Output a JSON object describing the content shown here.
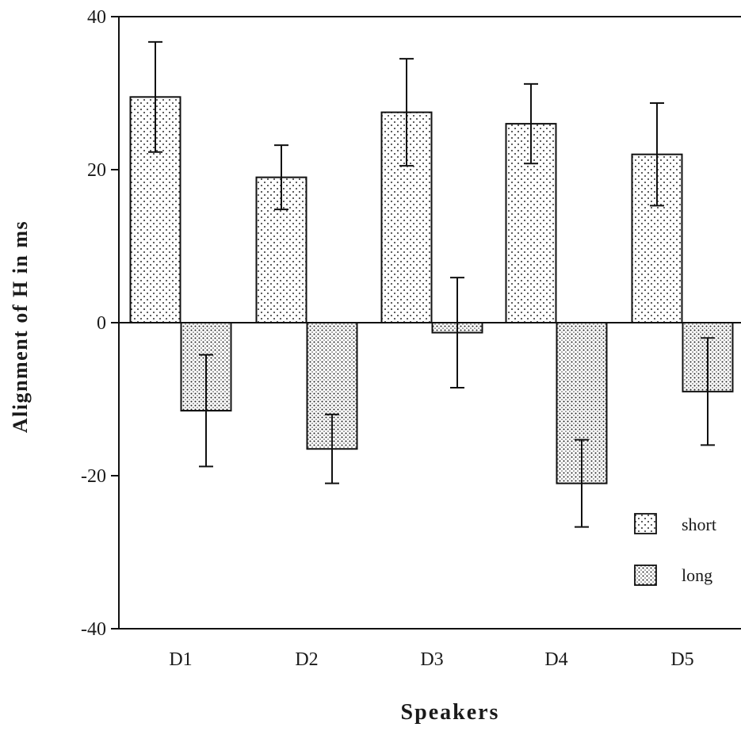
{
  "chart_data": {
    "type": "bar",
    "title": "",
    "xlabel": "Speakers",
    "ylabel": "Alignment of H in ms",
    "categories": [
      "D1",
      "D2",
      "D3",
      "D4",
      "D5"
    ],
    "ylim": [
      -40,
      40
    ],
    "yticks": [
      40,
      20,
      0,
      -20,
      -40
    ],
    "ytick_labels": [
      "40",
      "20",
      "0",
      "-20",
      "-40"
    ],
    "series": [
      {
        "name": "short",
        "pattern": "sparse-dots",
        "values": [
          29.5,
          19,
          27.5,
          26,
          22
        ],
        "errors": [
          7.2,
          4.2,
          7,
          5.2,
          6.7
        ]
      },
      {
        "name": "long",
        "pattern": "dense-dots",
        "values": [
          -11.5,
          -16.5,
          -1.3,
          -21,
          -9
        ],
        "errors": [
          7.3,
          4.5,
          7.2,
          5.7,
          7
        ]
      }
    ],
    "legend": {
      "position": "bottom-right"
    },
    "grid": false
  }
}
